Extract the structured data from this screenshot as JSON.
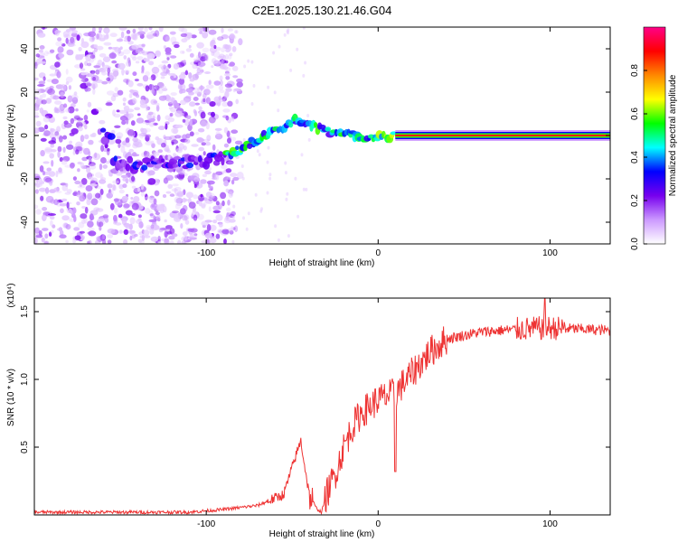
{
  "figure": {
    "title": "C2E1.2025.130.21.46.G04"
  },
  "chart_data": [
    {
      "type": "heatmap",
      "xlabel": "Height of straight line (km)",
      "ylabel": "Frequency (Hz)",
      "xlim": [
        -200,
        135
      ],
      "ylim": [
        -50,
        50
      ],
      "xticks": [
        -100,
        0,
        100
      ],
      "yticks": [
        -40,
        -20,
        0,
        20,
        40
      ],
      "colorbar": {
        "label": "Normalized spectral amplitude",
        "range": [
          0,
          1
        ],
        "ticks": [
          "0.0",
          "0.2",
          "0.4",
          "0.6",
          "0.8"
        ],
        "colormap": [
          "#ffffff",
          "#cc99ff",
          "#7700ee",
          "#0000ff",
          "#00ffff",
          "#00ff00",
          "#ffff00",
          "#ff8800",
          "#ff0000",
          "#ff0088"
        ]
      },
      "trace": {
        "description": "Spectral ridge frequency vs height",
        "x": [
          -155,
          -140,
          -125,
          -110,
          -95,
          -85,
          -75,
          -65,
          -55,
          -48,
          -42,
          -35,
          -25,
          -15,
          -5,
          0,
          10,
          30,
          60,
          100,
          135
        ],
        "y": [
          -12,
          -14,
          -13,
          -12,
          -11,
          -8,
          -4,
          0,
          4,
          7,
          5,
          3,
          1,
          0,
          -1,
          -1,
          0,
          0,
          0,
          0,
          0
        ]
      }
    },
    {
      "type": "line",
      "xlabel": "Height of straight line (km)",
      "ylabel": "SNR (10 * v/v)",
      "yscale_label": "(x10⁴)",
      "xlim": [
        -200,
        135
      ],
      "ylim": [
        0,
        1.6
      ],
      "xticks": [
        -100,
        0,
        100
      ],
      "yticks": [
        0.5,
        1.0,
        1.5
      ],
      "series": [
        {
          "name": "SNR",
          "color": "#ee3333",
          "x": [
            -200,
            -150,
            -110,
            -90,
            -70,
            -55,
            -50,
            -45,
            -42,
            -40,
            -36,
            -33,
            -30,
            -25,
            -20,
            -15,
            -10,
            -5,
            0,
            10,
            20,
            30,
            40,
            60,
            80,
            100,
            120,
            135
          ],
          "y": [
            0.02,
            0.02,
            0.02,
            0.04,
            0.07,
            0.15,
            0.35,
            0.55,
            0.3,
            0.15,
            0.05,
            0.02,
            0.15,
            0.3,
            0.5,
            0.65,
            0.75,
            0.8,
            0.85,
            0.9,
            1.05,
            1.2,
            1.3,
            1.35,
            1.37,
            1.38,
            1.37,
            1.36
          ]
        }
      ]
    }
  ]
}
